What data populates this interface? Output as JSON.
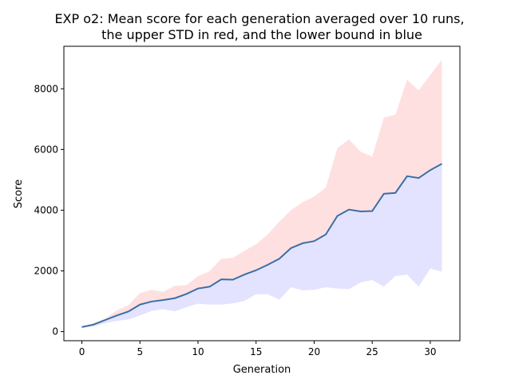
{
  "chart_data": {
    "type": "area",
    "title_lines": [
      "EXP o2: Mean score for each generation averaged over 10 runs,",
      "the upper STD in red, and the lower bound in blue"
    ],
    "xlabel": "Generation",
    "ylabel": "Score",
    "xlim": [
      -1.55,
      32.55
    ],
    "ylim": [
      -300,
      9400
    ],
    "xticks": [
      0,
      5,
      10,
      15,
      20,
      25,
      30
    ],
    "yticks": [
      0,
      2000,
      4000,
      6000,
      8000
    ],
    "x": [
      0,
      1,
      2,
      3,
      4,
      5,
      6,
      7,
      8,
      9,
      10,
      11,
      12,
      13,
      14,
      15,
      16,
      17,
      18,
      19,
      20,
      21,
      22,
      23,
      24,
      25,
      26,
      27,
      28,
      29,
      30,
      31
    ],
    "series": [
      {
        "role": "mean",
        "color": "#3a6fa8",
        "values": [
          150,
          230,
          380,
          530,
          660,
          890,
          990,
          1040,
          1100,
          1240,
          1420,
          1480,
          1720,
          1710,
          1880,
          2020,
          2200,
          2400,
          2750,
          2910,
          2980,
          3200,
          3810,
          4020,
          3960,
          3970,
          4540,
          4570,
          5120,
          5060,
          5320,
          5530
        ]
      },
      {
        "role": "upper_std",
        "color": "#ff0000",
        "fill_opacity": 0.12,
        "values": [
          160,
          280,
          430,
          700,
          870,
          1270,
          1380,
          1310,
          1510,
          1530,
          1830,
          1990,
          2400,
          2430,
          2660,
          2880,
          3200,
          3620,
          4000,
          4260,
          4450,
          4740,
          6050,
          6330,
          5930,
          5770,
          7050,
          7150,
          8300,
          7950,
          8450,
          8960
        ]
      },
      {
        "role": "lower_bound",
        "color": "#0000ff",
        "fill_opacity": 0.11,
        "values": [
          130,
          170,
          280,
          350,
          400,
          530,
          680,
          740,
          670,
          800,
          920,
          890,
          890,
          930,
          1010,
          1230,
          1230,
          1050,
          1460,
          1360,
          1380,
          1460,
          1420,
          1400,
          1620,
          1700,
          1480,
          1830,
          1880,
          1480,
          2080,
          1970
        ]
      }
    ],
    "grid": false,
    "legend": false
  }
}
